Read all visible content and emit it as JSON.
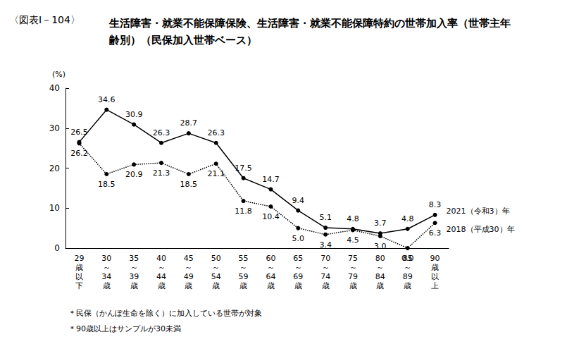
{
  "chart_data": {
    "type": "line",
    "figure_label": "〈図表Ⅰ－104〉",
    "title": "生活障害・就業不能保障保険、生活障害・就業不能保障特約の世帯加入率（世帯主年齢別）（民保加入世帯ベース）",
    "y_label": "(%)",
    "categories": [
      "29歳以下",
      "30～34歳",
      "35～39歳",
      "40～44歳",
      "45～49歳",
      "50～54歳",
      "55～59歳",
      "60～64歳",
      "65～69歳",
      "70～74歳",
      "75～79歳",
      "80～84歳",
      "85～89歳",
      "90歳以上"
    ],
    "series": [
      {
        "name": "2021（令和3）年",
        "color": "#000000",
        "line_style": "solid",
        "marker": "circle",
        "values": [
          26.5,
          34.6,
          30.9,
          26.3,
          28.7,
          26.3,
          17.5,
          14.7,
          9.4,
          5.1,
          4.8,
          3.7,
          4.8,
          8.3
        ]
      },
      {
        "name": "2018（平成30）年",
        "color": "#000000",
        "line_style": "dotted",
        "marker": "circle",
        "values": [
          26.2,
          18.5,
          20.9,
          21.3,
          18.5,
          21.1,
          11.8,
          10.4,
          5.0,
          3.4,
          4.5,
          3.0,
          0.0,
          6.3
        ],
        "value_labels": [
          "26.2",
          "18.5",
          "20.9",
          "21.3",
          "18.5",
          "21.1",
          "11.8",
          "10.4",
          "5.0",
          "3.4",
          "4.5",
          "3.0",
          "0.0",
          "6.3"
        ]
      }
    ],
    "ylim": [
      0,
      40
    ],
    "yticks": [
      0,
      10,
      20,
      30,
      40
    ],
    "grid": false,
    "data_labels": true,
    "notes": [
      "＊民保（かんぽ生命を除く）に加入している世帯が対象",
      "＊90歳以上はサンプルが30未満"
    ]
  }
}
